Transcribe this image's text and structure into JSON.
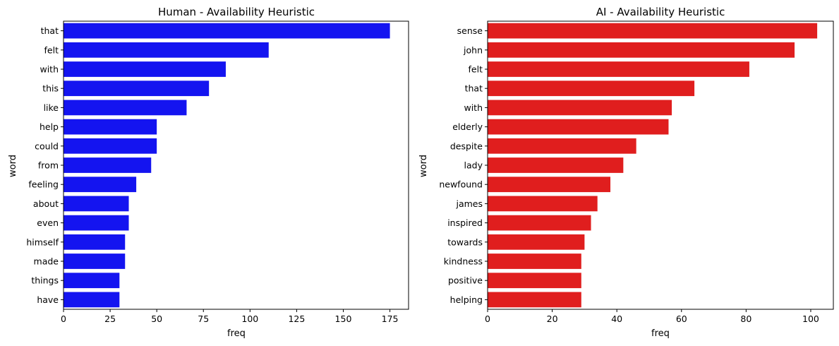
{
  "chart_data": [
    {
      "type": "bar",
      "orientation": "horizontal",
      "title": "Human - Availability Heuristic",
      "xlabel": "freq",
      "ylabel": "word",
      "color": "#1414f0",
      "categories": [
        "that",
        "felt",
        "with",
        "this",
        "like",
        "help",
        "could",
        "from",
        "feeling",
        "about",
        "even",
        "himself",
        "made",
        "things",
        "have"
      ],
      "values": [
        175,
        110,
        87,
        78,
        66,
        50,
        50,
        47,
        39,
        35,
        35,
        33,
        33,
        30,
        30
      ],
      "xlim": [
        0,
        185
      ],
      "xticks": [
        0,
        25,
        50,
        75,
        100,
        125,
        150,
        175
      ],
      "grid": false
    },
    {
      "type": "bar",
      "orientation": "horizontal",
      "title": "AI - Availability Heuristic",
      "xlabel": "freq",
      "ylabel": "word",
      "color": "#e01e1e",
      "categories": [
        "sense",
        "john",
        "felt",
        "that",
        "with",
        "elderly",
        "despite",
        "lady",
        "newfound",
        "james",
        "inspired",
        "towards",
        "kindness",
        "positive",
        "helping"
      ],
      "values": [
        102,
        95,
        81,
        64,
        57,
        56,
        46,
        42,
        38,
        34,
        32,
        30,
        29,
        29,
        29
      ],
      "xlim": [
        0,
        107
      ],
      "xticks": [
        0,
        20,
        40,
        60,
        80,
        100
      ],
      "grid": false
    }
  ]
}
